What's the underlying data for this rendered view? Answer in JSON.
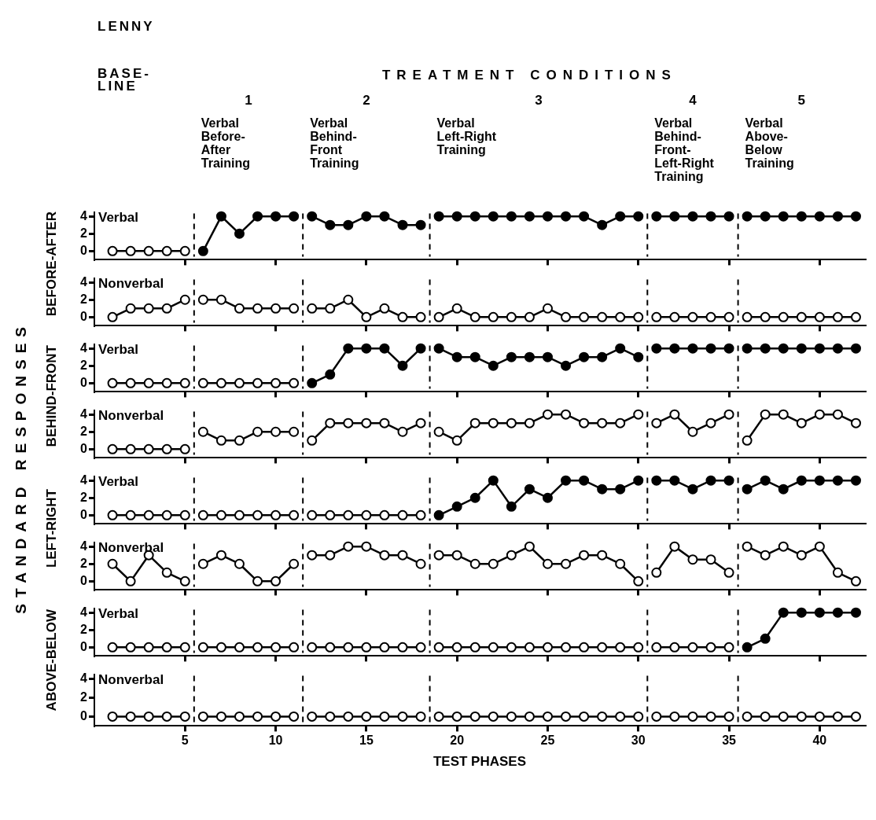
{
  "chart_data": [
    {
      "type": "line",
      "title": "LENNY",
      "ylabel": "BEFORE-AFTER",
      "annotations": [
        "BASE-LINE",
        "TREATMENT CONDITIONS",
        "1",
        "Verbal Before-After Training",
        "2",
        "Verbal Behind-Front Training",
        "3",
        "Verbal Left-Right Training",
        "4",
        "Verbal Behind-Front-Left-Right Training",
        "5",
        "Verbal Above-Below Training",
        "STANDARD RESPONSES"
      ],
      "xlim": [
        0,
        42.5
      ],
      "xticks": [
        5,
        10,
        15,
        20,
        25,
        30,
        35,
        40
      ],
      "ylim": [
        -1,
        4.5
      ],
      "yticks": [
        0,
        2,
        4
      ],
      "tick_labels": "y",
      "marker": "circle",
      "ref_lines": [
        {
          "axis": "x",
          "value": 5.5,
          "line_style": "dashed"
        },
        {
          "axis": "x",
          "value": 11.5,
          "line_style": "dashed"
        },
        {
          "axis": "x",
          "value": 18.5,
          "line_style": "dashed"
        },
        {
          "axis": "x",
          "value": 30.5,
          "line_style": "dashed"
        },
        {
          "axis": "x",
          "value": 35.5,
          "line_style": "dashed"
        }
      ],
      "series": [
        {
          "name": "Verbal",
          "color": "#000000",
          "x": [
            1,
            2,
            3,
            4,
            5
          ],
          "values": [
            0,
            0,
            0,
            0,
            0
          ],
          "colors": [
            "#ffffff",
            "#ffffff",
            "#ffffff",
            "#ffffff",
            "#ffffff"
          ]
        },
        {
          "color": "#000000",
          "x": [
            6,
            7,
            8,
            9,
            10,
            11
          ],
          "values": [
            0,
            4,
            2,
            4,
            4,
            4
          ],
          "colors": [
            "#000000",
            "#000000",
            "#000000",
            "#000000",
            "#000000",
            "#000000"
          ]
        },
        {
          "color": "#000000",
          "x": [
            12,
            13,
            14,
            15,
            16,
            17,
            18
          ],
          "values": [
            4,
            3,
            3,
            4,
            4,
            3,
            3
          ],
          "colors": [
            "#000000",
            "#000000",
            "#000000",
            "#000000",
            "#000000",
            "#000000",
            "#000000"
          ]
        },
        {
          "color": "#000000",
          "x": [
            19,
            20,
            21,
            22,
            23,
            24,
            25,
            26,
            27,
            28,
            29,
            30
          ],
          "values": [
            4,
            4,
            4,
            4,
            4,
            4,
            4,
            4,
            4,
            3,
            4,
            4
          ],
          "colors": [
            "#000000",
            "#000000",
            "#000000",
            "#000000",
            "#000000",
            "#000000",
            "#000000",
            "#000000",
            "#000000",
            "#000000",
            "#000000",
            "#000000"
          ]
        },
        {
          "color": "#000000",
          "x": [
            31,
            32,
            33,
            34,
            35
          ],
          "values": [
            4,
            4,
            4,
            4,
            4
          ],
          "colors": [
            "#000000",
            "#000000",
            "#000000",
            "#000000",
            "#000000"
          ]
        },
        {
          "color": "#000000",
          "x": [
            36,
            37,
            38,
            39,
            40,
            41,
            42
          ],
          "values": [
            4,
            4,
            4,
            4,
            4,
            4,
            4
          ],
          "colors": [
            "#000000",
            "#000000",
            "#000000",
            "#000000",
            "#000000",
            "#000000",
            "#000000"
          ]
        }
      ]
    },
    {
      "type": "line",
      "xlim": [
        0,
        42.5
      ],
      "xticks": [
        5,
        10,
        15,
        20,
        25,
        30,
        35,
        40
      ],
      "ylim": [
        -1,
        4.5
      ],
      "yticks": [
        0,
        2,
        4
      ],
      "tick_labels": "y",
      "marker": "circle",
      "ref_lines": [
        {
          "axis": "x",
          "value": 5.5,
          "line_style": "dashed"
        },
        {
          "axis": "x",
          "value": 11.5,
          "line_style": "dashed"
        },
        {
          "axis": "x",
          "value": 18.5,
          "line_style": "dashed"
        },
        {
          "axis": "x",
          "value": 30.5,
          "line_style": "dashed"
        },
        {
          "axis": "x",
          "value": 35.5,
          "line_style": "dashed"
        }
      ],
      "series": [
        {
          "name": "Nonverbal",
          "color": "#000000",
          "x": [
            1,
            2,
            3,
            4,
            5
          ],
          "values": [
            0,
            1,
            1,
            1,
            2
          ],
          "colors": [
            "#ffffff",
            "#ffffff",
            "#ffffff",
            "#ffffff",
            "#ffffff"
          ]
        },
        {
          "color": "#000000",
          "x": [
            6,
            7,
            8,
            9,
            10,
            11
          ],
          "values": [
            2,
            2,
            1,
            1,
            1,
            1
          ],
          "colors": [
            "#ffffff",
            "#ffffff",
            "#ffffff",
            "#ffffff",
            "#ffffff",
            "#ffffff"
          ]
        },
        {
          "color": "#000000",
          "x": [
            12,
            13,
            14,
            15,
            16,
            17,
            18
          ],
          "values": [
            1,
            1,
            2,
            0,
            1,
            0,
            0
          ],
          "colors": [
            "#ffffff",
            "#ffffff",
            "#ffffff",
            "#ffffff",
            "#ffffff",
            "#ffffff",
            "#ffffff"
          ]
        },
        {
          "color": "#000000",
          "x": [
            19,
            20,
            21,
            22,
            23,
            24,
            25,
            26,
            27,
            28,
            29,
            30
          ],
          "values": [
            0,
            1,
            0,
            0,
            0,
            0,
            1,
            0,
            0,
            0,
            0,
            0
          ],
          "colors": [
            "#ffffff",
            "#ffffff",
            "#ffffff",
            "#ffffff",
            "#ffffff",
            "#ffffff",
            "#ffffff",
            "#ffffff",
            "#ffffff",
            "#ffffff",
            "#ffffff",
            "#ffffff"
          ]
        },
        {
          "color": "#000000",
          "x": [
            31,
            32,
            33,
            34,
            35
          ],
          "values": [
            0,
            0,
            0,
            0,
            0
          ],
          "colors": [
            "#ffffff",
            "#ffffff",
            "#ffffff",
            "#ffffff",
            "#ffffff"
          ]
        },
        {
          "color": "#000000",
          "x": [
            36,
            37,
            38,
            39,
            40,
            41,
            42
          ],
          "values": [
            0,
            0,
            0,
            0,
            0,
            0,
            0
          ],
          "colors": [
            "#ffffff",
            "#ffffff",
            "#ffffff",
            "#ffffff",
            "#ffffff",
            "#ffffff",
            "#ffffff"
          ]
        }
      ]
    },
    {
      "type": "line",
      "ylabel": "BEHIND-FRONT",
      "xlim": [
        0,
        42.5
      ],
      "xticks": [
        5,
        10,
        15,
        20,
        25,
        30,
        35,
        40
      ],
      "ylim": [
        -1,
        4.5
      ],
      "yticks": [
        0,
        2,
        4
      ],
      "tick_labels": "y",
      "marker": "circle",
      "ref_lines": [
        {
          "axis": "x",
          "value": 5.5,
          "line_style": "dashed"
        },
        {
          "axis": "x",
          "value": 11.5,
          "line_style": "dashed"
        },
        {
          "axis": "x",
          "value": 18.5,
          "line_style": "dashed"
        },
        {
          "axis": "x",
          "value": 30.5,
          "line_style": "dashed"
        },
        {
          "axis": "x",
          "value": 35.5,
          "line_style": "dashed"
        }
      ],
      "series": [
        {
          "name": "Verbal",
          "color": "#000000",
          "x": [
            1,
            2,
            3,
            4,
            5
          ],
          "values": [
            0,
            0,
            0,
            0,
            0
          ],
          "colors": [
            "#ffffff",
            "#ffffff",
            "#ffffff",
            "#ffffff",
            "#ffffff"
          ]
        },
        {
          "color": "#000000",
          "x": [
            6,
            7,
            8,
            9,
            10,
            11
          ],
          "values": [
            0,
            0,
            0,
            0,
            0,
            0
          ],
          "colors": [
            "#ffffff",
            "#ffffff",
            "#ffffff",
            "#ffffff",
            "#ffffff",
            "#ffffff"
          ]
        },
        {
          "color": "#000000",
          "x": [
            12,
            13,
            14,
            15,
            16,
            17,
            18
          ],
          "values": [
            0,
            1,
            4,
            4,
            4,
            2,
            4
          ],
          "colors": [
            "#000000",
            "#000000",
            "#000000",
            "#000000",
            "#000000",
            "#000000",
            "#000000"
          ]
        },
        {
          "color": "#000000",
          "x": [
            19,
            20,
            21,
            22,
            23,
            24,
            25,
            26,
            27,
            28,
            29,
            30
          ],
          "values": [
            4,
            3,
            3,
            2,
            3,
            3,
            3,
            2,
            3,
            3,
            4,
            3
          ],
          "colors": [
            "#000000",
            "#000000",
            "#000000",
            "#000000",
            "#000000",
            "#000000",
            "#000000",
            "#000000",
            "#000000",
            "#000000",
            "#000000",
            "#000000"
          ]
        },
        {
          "color": "#000000",
          "x": [
            31,
            32,
            33,
            34,
            35
          ],
          "values": [
            4,
            4,
            4,
            4,
            4
          ],
          "colors": [
            "#000000",
            "#000000",
            "#000000",
            "#000000",
            "#000000"
          ]
        },
        {
          "color": "#000000",
          "x": [
            36,
            37,
            38,
            39,
            40,
            41,
            42
          ],
          "values": [
            4,
            4,
            4,
            4,
            4,
            4,
            4
          ],
          "colors": [
            "#000000",
            "#000000",
            "#000000",
            "#000000",
            "#000000",
            "#000000",
            "#000000"
          ]
        }
      ]
    },
    {
      "type": "line",
      "xlim": [
        0,
        42.5
      ],
      "xticks": [
        5,
        10,
        15,
        20,
        25,
        30,
        35,
        40
      ],
      "ylim": [
        -1,
        4.5
      ],
      "yticks": [
        0,
        2,
        4
      ],
      "tick_labels": "y",
      "marker": "circle",
      "ref_lines": [
        {
          "axis": "x",
          "value": 5.5,
          "line_style": "dashed"
        },
        {
          "axis": "x",
          "value": 11.5,
          "line_style": "dashed"
        },
        {
          "axis": "x",
          "value": 18.5,
          "line_style": "dashed"
        },
        {
          "axis": "x",
          "value": 30.5,
          "line_style": "dashed"
        },
        {
          "axis": "x",
          "value": 35.5,
          "line_style": "dashed"
        }
      ],
      "series": [
        {
          "name": "Nonverbal",
          "color": "#000000",
          "x": [
            1,
            2,
            3,
            4,
            5
          ],
          "values": [
            0,
            0,
            0,
            0,
            0
          ],
          "colors": [
            "#ffffff",
            "#ffffff",
            "#ffffff",
            "#ffffff",
            "#ffffff"
          ]
        },
        {
          "color": "#000000",
          "x": [
            6,
            7,
            8,
            9,
            10,
            11
          ],
          "values": [
            2,
            1,
            1,
            2,
            2,
            2
          ],
          "colors": [
            "#ffffff",
            "#ffffff",
            "#ffffff",
            "#ffffff",
            "#ffffff",
            "#ffffff"
          ]
        },
        {
          "color": "#000000",
          "x": [
            12,
            13,
            14,
            15,
            16,
            17,
            18
          ],
          "values": [
            1,
            3,
            3,
            3,
            3,
            2,
            3
          ],
          "colors": [
            "#ffffff",
            "#ffffff",
            "#ffffff",
            "#ffffff",
            "#ffffff",
            "#ffffff",
            "#ffffff"
          ]
        },
        {
          "color": "#000000",
          "x": [
            19,
            20,
            21,
            22,
            23,
            24,
            25,
            26,
            27,
            28,
            29,
            30
          ],
          "values": [
            2,
            1,
            3,
            3,
            3,
            3,
            4,
            4,
            3,
            3,
            3,
            4
          ],
          "colors": [
            "#ffffff",
            "#ffffff",
            "#ffffff",
            "#ffffff",
            "#ffffff",
            "#ffffff",
            "#ffffff",
            "#ffffff",
            "#ffffff",
            "#ffffff",
            "#ffffff",
            "#ffffff"
          ]
        },
        {
          "color": "#000000",
          "x": [
            31,
            32,
            33,
            34,
            35
          ],
          "values": [
            3,
            4,
            2,
            3,
            4
          ],
          "colors": [
            "#ffffff",
            "#ffffff",
            "#ffffff",
            "#ffffff",
            "#ffffff"
          ]
        },
        {
          "color": "#000000",
          "x": [
            36,
            37,
            38,
            39,
            40,
            41,
            42
          ],
          "values": [
            1,
            4,
            4,
            3,
            4,
            4,
            3
          ],
          "colors": [
            "#ffffff",
            "#ffffff",
            "#ffffff",
            "#ffffff",
            "#ffffff",
            "#ffffff",
            "#ffffff"
          ]
        }
      ]
    },
    {
      "type": "line",
      "ylabel": "LEFT-RIGHT",
      "xlim": [
        0,
        42.5
      ],
      "xticks": [
        5,
        10,
        15,
        20,
        25,
        30,
        35,
        40
      ],
      "ylim": [
        -1,
        4.5
      ],
      "yticks": [
        0,
        2,
        4
      ],
      "tick_labels": "y",
      "marker": "circle",
      "ref_lines": [
        {
          "axis": "x",
          "value": 5.5,
          "line_style": "dashed"
        },
        {
          "axis": "x",
          "value": 11.5,
          "line_style": "dashed"
        },
        {
          "axis": "x",
          "value": 18.5,
          "line_style": "dashed"
        },
        {
          "axis": "x",
          "value": 30.5,
          "line_style": "dashed"
        },
        {
          "axis": "x",
          "value": 35.5,
          "line_style": "dashed"
        }
      ],
      "series": [
        {
          "name": "Verbal",
          "color": "#000000",
          "x": [
            1,
            2,
            3,
            4,
            5
          ],
          "values": [
            0,
            0,
            0,
            0,
            0
          ],
          "colors": [
            "#ffffff",
            "#ffffff",
            "#ffffff",
            "#ffffff",
            "#ffffff"
          ]
        },
        {
          "color": "#000000",
          "x": [
            6,
            7,
            8,
            9,
            10,
            11
          ],
          "values": [
            0,
            0,
            0,
            0,
            0,
            0
          ],
          "colors": [
            "#ffffff",
            "#ffffff",
            "#ffffff",
            "#ffffff",
            "#ffffff",
            "#ffffff"
          ]
        },
        {
          "color": "#000000",
          "x": [
            12,
            13,
            14,
            15,
            16,
            17,
            18
          ],
          "values": [
            0,
            0,
            0,
            0,
            0,
            0,
            0
          ],
          "colors": [
            "#ffffff",
            "#ffffff",
            "#ffffff",
            "#ffffff",
            "#ffffff",
            "#ffffff",
            "#ffffff"
          ]
        },
        {
          "color": "#000000",
          "x": [
            19,
            20,
            21,
            22,
            23,
            24,
            25,
            26,
            27,
            28,
            29,
            30
          ],
          "values": [
            0,
            1,
            2,
            4,
            1,
            3,
            2,
            4,
            4,
            3,
            3,
            4
          ],
          "colors": [
            "#000000",
            "#000000",
            "#000000",
            "#000000",
            "#000000",
            "#000000",
            "#000000",
            "#000000",
            "#000000",
            "#000000",
            "#000000",
            "#000000"
          ]
        },
        {
          "color": "#000000",
          "x": [
            31,
            32,
            33,
            34,
            35
          ],
          "values": [
            4,
            4,
            3,
            4,
            4
          ],
          "colors": [
            "#000000",
            "#000000",
            "#000000",
            "#000000",
            "#000000"
          ]
        },
        {
          "color": "#000000",
          "x": [
            36,
            37,
            38,
            39,
            40,
            41,
            42
          ],
          "values": [
            3,
            4,
            3,
            4,
            4,
            4,
            4
          ],
          "colors": [
            "#000000",
            "#000000",
            "#000000",
            "#000000",
            "#000000",
            "#000000",
            "#000000"
          ]
        }
      ]
    },
    {
      "type": "line",
      "xlim": [
        0,
        42.5
      ],
      "xticks": [
        5,
        10,
        15,
        20,
        25,
        30,
        35,
        40
      ],
      "ylim": [
        -1,
        4.5
      ],
      "yticks": [
        0,
        2,
        4
      ],
      "tick_labels": "y",
      "marker": "circle",
      "ref_lines": [
        {
          "axis": "x",
          "value": 5.5,
          "line_style": "dashed"
        },
        {
          "axis": "x",
          "value": 11.5,
          "line_style": "dashed"
        },
        {
          "axis": "x",
          "value": 18.5,
          "line_style": "dashed"
        },
        {
          "axis": "x",
          "value": 30.5,
          "line_style": "dashed"
        },
        {
          "axis": "x",
          "value": 35.5,
          "line_style": "dashed"
        }
      ],
      "series": [
        {
          "name": "Nonverbal",
          "color": "#000000",
          "x": [
            1,
            2,
            3,
            4,
            5
          ],
          "values": [
            2,
            0,
            3,
            1,
            0
          ],
          "colors": [
            "#ffffff",
            "#ffffff",
            "#ffffff",
            "#ffffff",
            "#ffffff"
          ]
        },
        {
          "color": "#000000",
          "x": [
            6,
            7,
            8,
            9,
            10,
            11
          ],
          "values": [
            2,
            3,
            2,
            0,
            0,
            2
          ],
          "colors": [
            "#ffffff",
            "#ffffff",
            "#ffffff",
            "#ffffff",
            "#ffffff",
            "#ffffff"
          ]
        },
        {
          "color": "#000000",
          "x": [
            12,
            13,
            14,
            15,
            16,
            17,
            18
          ],
          "values": [
            3,
            3,
            4,
            4,
            3,
            3,
            2
          ],
          "colors": [
            "#ffffff",
            "#ffffff",
            "#ffffff",
            "#ffffff",
            "#ffffff",
            "#ffffff",
            "#ffffff"
          ]
        },
        {
          "color": "#000000",
          "x": [
            19,
            20,
            21,
            22,
            23,
            24,
            25,
            26,
            27,
            28,
            29,
            30
          ],
          "values": [
            3,
            3,
            2,
            2,
            3,
            4,
            2,
            2,
            3,
            3,
            2,
            0
          ],
          "colors": [
            "#ffffff",
            "#ffffff",
            "#ffffff",
            "#ffffff",
            "#ffffff",
            "#ffffff",
            "#ffffff",
            "#ffffff",
            "#ffffff",
            "#ffffff",
            "#ffffff",
            "#ffffff"
          ]
        },
        {
          "color": "#000000",
          "x": [
            31,
            32,
            33,
            34,
            35
          ],
          "values": [
            1,
            4,
            2.5,
            2.5,
            1
          ],
          "colors": [
            "#ffffff",
            "#ffffff",
            "#ffffff",
            "#ffffff",
            "#ffffff"
          ]
        },
        {
          "color": "#000000",
          "x": [
            36,
            37,
            38,
            39,
            40,
            41,
            42
          ],
          "values": [
            4,
            3,
            4,
            3,
            4,
            1,
            0
          ],
          "colors": [
            "#ffffff",
            "#ffffff",
            "#ffffff",
            "#ffffff",
            "#ffffff",
            "#ffffff",
            "#ffffff"
          ]
        }
      ]
    },
    {
      "type": "line",
      "ylabel": "ABOVE-BELOW",
      "xlim": [
        0,
        42.5
      ],
      "xticks": [
        5,
        10,
        15,
        20,
        25,
        30,
        35,
        40
      ],
      "ylim": [
        -1,
        4.5
      ],
      "yticks": [
        0,
        2,
        4
      ],
      "tick_labels": "y",
      "marker": "circle",
      "ref_lines": [
        {
          "axis": "x",
          "value": 5.5,
          "line_style": "dashed"
        },
        {
          "axis": "x",
          "value": 11.5,
          "line_style": "dashed"
        },
        {
          "axis": "x",
          "value": 18.5,
          "line_style": "dashed"
        },
        {
          "axis": "x",
          "value": 30.5,
          "line_style": "dashed"
        },
        {
          "axis": "x",
          "value": 35.5,
          "line_style": "dashed"
        }
      ],
      "series": [
        {
          "name": "Verbal",
          "color": "#000000",
          "x": [
            1,
            2,
            3,
            4,
            5
          ],
          "values": [
            0,
            0,
            0,
            0,
            0
          ],
          "colors": [
            "#ffffff",
            "#ffffff",
            "#ffffff",
            "#ffffff",
            "#ffffff"
          ]
        },
        {
          "color": "#000000",
          "x": [
            6,
            7,
            8,
            9,
            10,
            11
          ],
          "values": [
            0,
            0,
            0,
            0,
            0,
            0
          ],
          "colors": [
            "#ffffff",
            "#ffffff",
            "#ffffff",
            "#ffffff",
            "#ffffff",
            "#ffffff"
          ]
        },
        {
          "color": "#000000",
          "x": [
            12,
            13,
            14,
            15,
            16,
            17,
            18
          ],
          "values": [
            0,
            0,
            0,
            0,
            0,
            0,
            0
          ],
          "colors": [
            "#ffffff",
            "#ffffff",
            "#ffffff",
            "#ffffff",
            "#ffffff",
            "#ffffff",
            "#ffffff"
          ]
        },
        {
          "color": "#000000",
          "x": [
            19,
            20,
            21,
            22,
            23,
            24,
            25,
            26,
            27,
            28,
            29,
            30
          ],
          "values": [
            0,
            0,
            0,
            0,
            0,
            0,
            0,
            0,
            0,
            0,
            0,
            0
          ],
          "colors": [
            "#ffffff",
            "#ffffff",
            "#ffffff",
            "#ffffff",
            "#ffffff",
            "#ffffff",
            "#ffffff",
            "#ffffff",
            "#ffffff",
            "#ffffff",
            "#ffffff",
            "#ffffff"
          ]
        },
        {
          "color": "#000000",
          "x": [
            31,
            32,
            33,
            34,
            35
          ],
          "values": [
            0,
            0,
            0,
            0,
            0
          ],
          "colors": [
            "#ffffff",
            "#ffffff",
            "#ffffff",
            "#ffffff",
            "#ffffff"
          ]
        },
        {
          "color": "#000000",
          "x": [
            36,
            37,
            38,
            39,
            40,
            41,
            42
          ],
          "values": [
            0,
            1,
            4,
            4,
            4,
            4,
            4
          ],
          "colors": [
            "#000000",
            "#000000",
            "#000000",
            "#000000",
            "#000000",
            "#000000",
            "#000000"
          ]
        }
      ]
    },
    {
      "type": "line",
      "xlabel": "TEST PHASES",
      "xlim": [
        0,
        42.5
      ],
      "xticks": [
        5,
        10,
        15,
        20,
        25,
        30,
        35,
        40
      ],
      "ylim": [
        -1,
        4.5
      ],
      "yticks": [
        0,
        2,
        4
      ],
      "marker": "circle",
      "ref_lines": [
        {
          "axis": "x",
          "value": 5.5,
          "line_style": "dashed"
        },
        {
          "axis": "x",
          "value": 11.5,
          "line_style": "dashed"
        },
        {
          "axis": "x",
          "value": 18.5,
          "line_style": "dashed"
        },
        {
          "axis": "x",
          "value": 30.5,
          "line_style": "dashed"
        },
        {
          "axis": "x",
          "value": 35.5,
          "line_style": "dashed"
        }
      ],
      "series": [
        {
          "name": "Nonverbal",
          "color": "#000000",
          "x": [
            1,
            2,
            3,
            4,
            5
          ],
          "values": [
            0,
            0,
            0,
            0,
            0
          ],
          "colors": [
            "#ffffff",
            "#ffffff",
            "#ffffff",
            "#ffffff",
            "#ffffff"
          ]
        },
        {
          "color": "#000000",
          "x": [
            6,
            7,
            8,
            9,
            10,
            11
          ],
          "values": [
            0,
            0,
            0,
            0,
            0,
            0
          ],
          "colors": [
            "#ffffff",
            "#ffffff",
            "#ffffff",
            "#ffffff",
            "#ffffff",
            "#ffffff"
          ]
        },
        {
          "color": "#000000",
          "x": [
            12,
            13,
            14,
            15,
            16,
            17,
            18
          ],
          "values": [
            0,
            0,
            0,
            0,
            0,
            0,
            0
          ],
          "colors": [
            "#ffffff",
            "#ffffff",
            "#ffffff",
            "#ffffff",
            "#ffffff",
            "#ffffff",
            "#ffffff"
          ]
        },
        {
          "color": "#000000",
          "x": [
            19,
            20,
            21,
            22,
            23,
            24,
            25,
            26,
            27,
            28,
            29,
            30
          ],
          "values": [
            0,
            0,
            0,
            0,
            0,
            0,
            0,
            0,
            0,
            0,
            0,
            0
          ],
          "colors": [
            "#ffffff",
            "#ffffff",
            "#ffffff",
            "#ffffff",
            "#ffffff",
            "#ffffff",
            "#ffffff",
            "#ffffff",
            "#ffffff",
            "#ffffff",
            "#ffffff",
            "#ffffff"
          ]
        },
        {
          "color": "#000000",
          "x": [
            31,
            32,
            33,
            34,
            35
          ],
          "values": [
            0,
            0,
            0,
            0,
            0
          ],
          "colors": [
            "#ffffff",
            "#ffffff",
            "#ffffff",
            "#ffffff",
            "#ffffff"
          ]
        },
        {
          "color": "#000000",
          "x": [
            36,
            37,
            38,
            39,
            40,
            41,
            42
          ],
          "values": [
            0,
            0,
            0,
            0,
            0,
            0,
            0
          ],
          "colors": [
            "#ffffff",
            "#ffffff",
            "#ffffff",
            "#ffffff",
            "#ffffff",
            "#ffffff",
            "#ffffff"
          ]
        }
      ]
    }
  ]
}
